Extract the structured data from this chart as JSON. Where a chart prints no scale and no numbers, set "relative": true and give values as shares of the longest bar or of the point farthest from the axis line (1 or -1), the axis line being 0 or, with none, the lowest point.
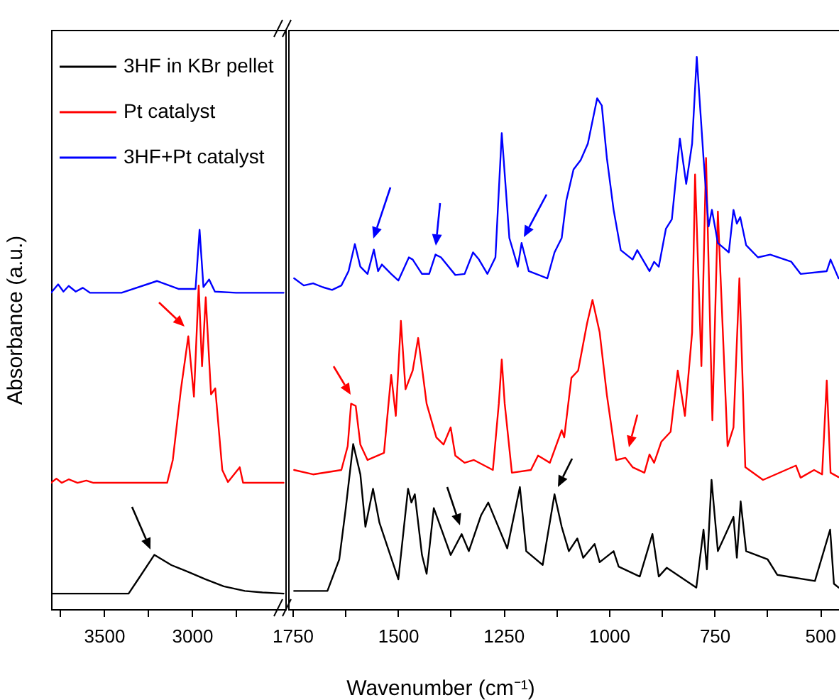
{
  "chart_data": [
    {
      "type": "line",
      "relative": true,
      "ylabel": "Absorbance (a.u.)",
      "legend": "top left",
      "tick_labels": "x",
      "xlim": [
        3800,
        2470
      ],
      "xticks": [
        {
          "value": 3750,
          "label": null
        },
        3500,
        {
          "value": 3250,
          "label": null
        },
        3000,
        {
          "value": 2750,
          "label": null
        }
      ],
      "series": [
        {
          "name": "3HF in KBr pellet",
          "color": "#000000",
          "x": [
            3800,
            3360,
            3305,
            3214,
            3117,
            3021,
            2924,
            2820,
            2700,
            2600,
            2480
          ],
          "values": [
            0.041,
            0.041,
            0.079,
            0.143,
            0.116,
            0.098,
            0.079,
            0.06,
            0.048,
            0.044,
            0.041
          ]
        },
        {
          "name": "Pt catalyst",
          "color": "#ff0000",
          "x": [
            3800,
            3770,
            3740,
            3700,
            3650,
            3600,
            3560,
            3141,
            3109,
            3063,
            3021,
            2989,
            2962,
            2943,
            2922,
            2892,
            2868,
            2828,
            2796,
            2729,
            2710,
            2480
          ],
          "values": [
            0.333,
            0.344,
            0.333,
            0.342,
            0.333,
            0.339,
            0.333,
            0.333,
            0.393,
            0.579,
            0.719,
            0.56,
            0.853,
            0.64,
            0.822,
            0.566,
            0.582,
            0.367,
            0.335,
            0.374,
            0.333,
            0.333
          ]
        },
        {
          "name": "3HF+Pt catalyst",
          "color": "#0000ff",
          "x": [
            3800,
            3760,
            3730,
            3700,
            3660,
            3620,
            3580,
            3400,
            3198,
            3077,
            2980,
            2957,
            2935,
            2903,
            2870,
            2750,
            2480
          ],
          "values": [
            0.834,
            0.856,
            0.837,
            0.852,
            0.837,
            0.847,
            0.834,
            0.834,
            0.865,
            0.844,
            0.844,
            1,
            0.849,
            0.869,
            0.837,
            0.834,
            0.834
          ]
        }
      ]
    },
    {
      "type": "line",
      "relative": true,
      "xlabel": "Wavenumber (cm⁻¹)",
      "tick_labels": "x",
      "xlim": [
        1760,
        455
      ],
      "xticks": [
        1750,
        {
          "value": 1625,
          "label": null
        },
        1500,
        {
          "value": 1375,
          "label": null
        },
        1250,
        {
          "value": 1125,
          "label": null
        },
        1000,
        {
          "value": 875,
          "label": null
        },
        750,
        {
          "value": 625,
          "label": null
        },
        500
      ],
      "series": [
        {
          "color": "#000000",
          "x": [
            1746,
            1667,
            1639,
            1624,
            1606,
            1589,
            1577,
            1559,
            1544,
            1499,
            1476,
            1468,
            1460,
            1443,
            1432,
            1415,
            1375,
            1349,
            1332,
            1303,
            1286,
            1241,
            1211,
            1196,
            1157,
            1129,
            1112,
            1095,
            1075,
            1061,
            1034,
            1022,
            989,
            977,
            927,
            897,
            882,
            863,
            793,
            776,
            768,
            757,
            742,
            705,
            697,
            688,
            675,
            624,
            601,
            512,
            476,
            467,
            456
          ],
          "values": [
            0.033,
            0.033,
            0.09,
            0.18,
            0.299,
            0.244,
            0.149,
            0.218,
            0.157,
            0.054,
            0.218,
            0.193,
            0.208,
            0.098,
            0.064,
            0.183,
            0.098,
            0.136,
            0.105,
            0.17,
            0.193,
            0.11,
            0.221,
            0.105,
            0.08,
            0.208,
            0.149,
            0.105,
            0.128,
            0.093,
            0.118,
            0.085,
            0.105,
            0.077,
            0.059,
            0.136,
            0.059,
            0.075,
            0.039,
            0.144,
            0.072,
            0.234,
            0.105,
            0.167,
            0.093,
            0.195,
            0.105,
            0.09,
            0.062,
            0.051,
            0.144,
            0.046,
            0.039
          ]
        },
        {
          "color": "#ff0000",
          "x": [
            1746,
            1701,
            1634,
            1619,
            1611,
            1600,
            1589,
            1572,
            1533,
            1516,
            1505,
            1493,
            1482,
            1465,
            1452,
            1432,
            1409,
            1392,
            1375,
            1364,
            1342,
            1320,
            1275,
            1261,
            1254,
            1247,
            1230,
            1185,
            1168,
            1140,
            1112,
            1106,
            1089,
            1073,
            1052,
            1039,
            1022,
            1005,
            983,
            961,
            944,
            916,
            904,
            893,
            876,
            854,
            837,
            820,
            803,
            796,
            781,
            770,
            755,
            742,
            719,
            705,
            691,
            677,
            635,
            557,
            546,
            514,
            495,
            484,
            475,
            456
          ],
          "values": [
            0.252,
            0.244,
            0.252,
            0.295,
            0.372,
            0.368,
            0.298,
            0.27,
            0.283,
            0.424,
            0.35,
            0.522,
            0.398,
            0.432,
            0.491,
            0.372,
            0.311,
            0.298,
            0.329,
            0.278,
            0.265,
            0.27,
            0.252,
            0.372,
            0.452,
            0.372,
            0.247,
            0.252,
            0.278,
            0.265,
            0.324,
            0.311,
            0.419,
            0.432,
            0.517,
            0.56,
            0.501,
            0.388,
            0.27,
            0.274,
            0.257,
            0.247,
            0.28,
            0.265,
            0.303,
            0.321,
            0.432,
            0.35,
            0.501,
            0.787,
            0.44,
            0.817,
            0.342,
            0.72,
            0.295,
            0.329,
            0.599,
            0.257,
            0.234,
            0.26,
            0.238,
            0.252,
            0.244,
            0.414,
            0.247,
            0.239
          ]
        },
        {
          "color": "#0000ff",
          "x": [
            1746,
            1723,
            1701,
            1678,
            1656,
            1634,
            1617,
            1602,
            1589,
            1572,
            1557,
            1547,
            1538,
            1516,
            1499,
            1474,
            1465,
            1443,
            1426,
            1411,
            1398,
            1364,
            1342,
            1322,
            1308,
            1288,
            1269,
            1254,
            1236,
            1216,
            1207,
            1190,
            1146,
            1129,
            1112,
            1101,
            1084,
            1067,
            1050,
            1028,
            1017,
            1005,
            989,
            972,
            944,
            933,
            904,
            893,
            882,
            865,
            851,
            832,
            817,
            803,
            792,
            776,
            764,
            756,
            742,
            716,
            705,
            697,
            689,
            675,
            647,
            618,
            568,
            546,
            484,
            475,
            456
          ],
          "values": [
            0.599,
            0.586,
            0.59,
            0.583,
            0.578,
            0.586,
            0.612,
            0.661,
            0.62,
            0.607,
            0.651,
            0.612,
            0.624,
            0.607,
            0.595,
            0.637,
            0.633,
            0.607,
            0.607,
            0.642,
            0.637,
            0.605,
            0.607,
            0.646,
            0.633,
            0.607,
            0.637,
            0.862,
            0.672,
            0.62,
            0.663,
            0.612,
            0.599,
            0.646,
            0.672,
            0.74,
            0.796,
            0.813,
            0.843,
            0.925,
            0.912,
            0.817,
            0.723,
            0.65,
            0.633,
            0.65,
            0.612,
            0.629,
            0.62,
            0.689,
            0.706,
            0.852,
            0.77,
            0.843,
            1.0,
            0.817,
            0.693,
            0.723,
            0.663,
            0.646,
            0.723,
            0.698,
            0.71,
            0.659,
            0.637,
            0.642,
            0.629,
            0.607,
            0.612,
            0.633,
            0.599
          ]
        }
      ]
    }
  ]
}
